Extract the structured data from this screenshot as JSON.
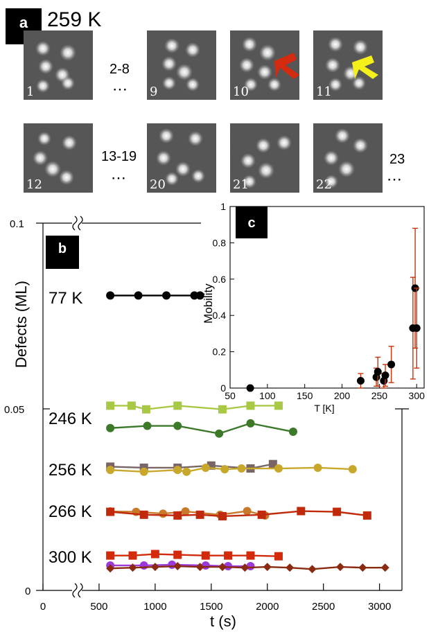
{
  "panel_a": {
    "label": "a",
    "temperature": "259 K",
    "row1": {
      "frames": [
        "1",
        "9",
        "10",
        "11"
      ],
      "gap_label": "2-8",
      "ellipsis": "⋯"
    },
    "row2": {
      "frames": [
        "12",
        "20",
        "21",
        "22"
      ],
      "gap_label": "13-19",
      "ellipsis": "⋯",
      "trailing_label": "23",
      "trailing_ellipsis": "⋯"
    },
    "arrows": [
      {
        "frame": "10",
        "color": "#d42a10"
      },
      {
        "frame": "11",
        "color": "#f5ef1a"
      }
    ]
  },
  "colors": {
    "tile_bg": "#555555",
    "label_bg": "#000000"
  },
  "chart_data": [
    {
      "panel": "b",
      "label": "b",
      "type": "line",
      "xlabel": "t (s)",
      "ylabel": "Defects (ML)",
      "xlim": [
        0,
        3200
      ],
      "ylim": [
        0,
        0.1
      ],
      "x_ticks": [
        "0",
        "500",
        "1000",
        "1500",
        "2000",
        "2500",
        "3000"
      ],
      "y_ticks": [
        "0",
        "0.05",
        "0.1"
      ],
      "temperature_labels": [
        "77 K",
        "246 K",
        "256 K",
        "266 K",
        "300 K"
      ],
      "series": [
        {
          "name": "77 K",
          "color": "#000000",
          "marker": "circle",
          "x": [
            600,
            850,
            1100,
            1350,
            1400
          ],
          "y": [
            0.0803,
            0.0803,
            0.0803,
            0.0803,
            0.0803
          ]
        },
        {
          "name": "246 K a",
          "color": "#a8c846",
          "marker": "square",
          "x": [
            600,
            790,
            920,
            1200,
            1600,
            1850,
            2100
          ],
          "y": [
            0.0503,
            0.0503,
            0.0493,
            0.0503,
            0.0493,
            0.0503,
            0.0503
          ]
        },
        {
          "name": "246 K b",
          "color": "#3c7a2a",
          "marker": "circle",
          "x": [
            600,
            930,
            1200,
            1570,
            1850,
            2230
          ],
          "y": [
            0.0442,
            0.0448,
            0.0448,
            0.0427,
            0.0455,
            0.0432
          ]
        },
        {
          "name": "256 K a",
          "color": "#7a6565",
          "marker": "square",
          "x": [
            600,
            900,
            1200,
            1500,
            1850,
            2050
          ],
          "y": [
            0.0337,
            0.0334,
            0.0334,
            0.034,
            0.0332,
            0.0344
          ]
        },
        {
          "name": "256 K b",
          "color": "#c8a82a",
          "marker": "circle",
          "x": [
            600,
            900,
            1200,
            1280,
            1450,
            1620,
            1770,
            2100,
            2450,
            2760
          ],
          "y": [
            0.0328,
            0.0323,
            0.0328,
            0.0323,
            0.0334,
            0.033,
            0.0332,
            0.0332,
            0.0334,
            0.033
          ]
        },
        {
          "name": "266 K a",
          "color": "#c87a2a",
          "marker": "circle",
          "x": [
            600,
            830,
            1070,
            1270,
            1580,
            1820,
            1980
          ],
          "y": [
            0.0215,
            0.0214,
            0.0209,
            0.0215,
            0.0206,
            0.0216,
            0.0204
          ]
        },
        {
          "name": "266 K b",
          "color": "#c02a0a",
          "marker": "square",
          "x": [
            600,
            900,
            1200,
            1400,
            1600,
            1950,
            2300,
            2620,
            2890
          ],
          "y": [
            0.0214,
            0.0206,
            0.0204,
            0.0206,
            0.0202,
            0.0206,
            0.0216,
            0.0214,
            0.0204
          ]
        },
        {
          "name": "300 K a",
          "color": "#d22a0a",
          "marker": "square",
          "x": [
            600,
            800,
            1000,
            1200,
            1450,
            1650,
            1850,
            2100
          ],
          "y": [
            0.0095,
            0.0095,
            0.0099,
            0.0097,
            0.0095,
            0.0095,
            0.0095,
            0.0093
          ]
        },
        {
          "name": "300 K b",
          "color": "#9a3ad8",
          "marker": "circle",
          "x": [
            600,
            900,
            1150,
            1450,
            1650,
            1850
          ],
          "y": [
            0.0068,
            0.0068,
            0.007,
            0.0068,
            0.0066,
            0.0066
          ]
        },
        {
          "name": "300 K c",
          "color": "#8a2a10",
          "marker": "diamond",
          "x": [
            600,
            800,
            1000,
            1200,
            1400,
            1600,
            1800,
            2000,
            2200,
            2400,
            2650,
            2850,
            3050
          ],
          "y": [
            0.006,
            0.0062,
            0.0064,
            0.0066,
            0.0064,
            0.0064,
            0.0062,
            0.0064,
            0.0062,
            0.0058,
            0.0064,
            0.0062,
            0.0062
          ]
        }
      ]
    },
    {
      "panel": "c",
      "label": "c",
      "type": "scatter",
      "xlabel": "T [K]",
      "ylabel": "Mobility",
      "xlim": [
        50,
        310
      ],
      "ylim": [
        0,
        1
      ],
      "x_ticks": [
        "50",
        "100",
        "150",
        "200",
        "250",
        "300"
      ],
      "y_ticks": [
        "0",
        "0.2",
        "0.4",
        "0.6",
        "0.8",
        "1"
      ],
      "marker_color": "#000000",
      "error_color": "#c8320a",
      "points": [
        {
          "x": 77,
          "y": 0.0,
          "err": 0.0
        },
        {
          "x": 225,
          "y": 0.04,
          "err": 0.04
        },
        {
          "x": 246,
          "y": 0.06,
          "err": 0.05
        },
        {
          "x": 248,
          "y": 0.09,
          "err": 0.08
        },
        {
          "x": 256,
          "y": 0.04,
          "err": 0.04
        },
        {
          "x": 258,
          "y": 0.07,
          "err": 0.06
        },
        {
          "x": 266,
          "y": 0.13,
          "err": 0.1
        },
        {
          "x": 295,
          "y": 0.33,
          "err": 0.28
        },
        {
          "x": 298,
          "y": 0.55,
          "err": 0.33
        },
        {
          "x": 300,
          "y": 0.33,
          "err": 0.22
        }
      ]
    }
  ]
}
